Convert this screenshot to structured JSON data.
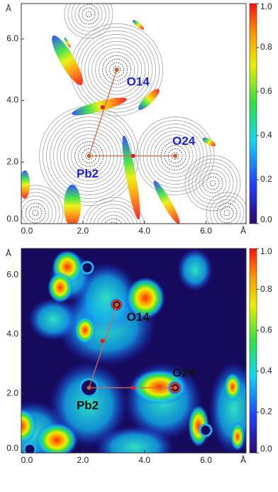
{
  "chart_data": [
    {
      "type": "contour",
      "x_label": "Å",
      "y_label": "Å",
      "xlim": [
        0,
        7.3
      ],
      "ylim": [
        0,
        7.15
      ],
      "xticks": [
        {
          "value": 0,
          "label": "0.0"
        },
        {
          "value": 2,
          "label": "2.0"
        },
        {
          "value": 4,
          "label": "4.0"
        },
        {
          "value": 6,
          "label": "6.0"
        }
      ],
      "yticks": [
        {
          "value": 0,
          "label": "0.0"
        },
        {
          "value": 2,
          "label": "2.0"
        },
        {
          "value": 4,
          "label": "4.0"
        },
        {
          "value": 6,
          "label": "6.0"
        }
      ],
      "colorbar": {
        "lim": [
          0,
          1
        ],
        "ticks": [
          {
            "value": 0,
            "label": "0.0"
          },
          {
            "value": 0.2,
            "label": "0.2"
          },
          {
            "value": 0.4,
            "label": "0.4"
          },
          {
            "value": 0.6,
            "label": "0.6"
          },
          {
            "value": 0.8,
            "label": "0.8"
          },
          {
            "value": 1,
            "label": "1.0"
          }
        ]
      },
      "atoms": [
        {
          "label": "O14",
          "x": 3.1,
          "y": 5.0
        },
        {
          "label": "O24",
          "x": 5.0,
          "y": 2.2
        },
        {
          "label": "Pb2",
          "x": 2.2,
          "y": 2.2
        }
      ],
      "label_color": "#2323c8",
      "critical_points": {
        "x": [
          2.64,
          3.63
        ],
        "y": [
          3.78,
          2.2
        ]
      }
    },
    {
      "type": "heatmap",
      "x_label": "Å",
      "y_label": "Å",
      "xlim": [
        0,
        7.3
      ],
      "ylim": [
        0,
        6.9
      ],
      "xticks": [
        {
          "value": 0,
          "label": "0.0"
        },
        {
          "value": 2,
          "label": "2.0"
        },
        {
          "value": 4,
          "label": "4.0"
        },
        {
          "value": 6,
          "label": "6.0"
        }
      ],
      "yticks": [
        {
          "value": 0,
          "label": "0.0"
        },
        {
          "value": 2,
          "label": "2.0"
        },
        {
          "value": 4,
          "label": "4.0"
        },
        {
          "value": 6,
          "label": "6.0"
        }
      ],
      "colorbar": {
        "lim": [
          0,
          1
        ],
        "ticks": [
          {
            "value": 0,
            "label": "0.0"
          },
          {
            "value": 0.2,
            "label": "0.2"
          },
          {
            "value": 0.4,
            "label": "0.4"
          },
          {
            "value": 0.6,
            "label": "0.6"
          },
          {
            "value": 0.8,
            "label": "0.8"
          },
          {
            "value": 1,
            "label": "1.0"
          }
        ]
      },
      "atoms": [
        {
          "label": "O14",
          "x": 3.1,
          "y": 5.0
        },
        {
          "label": "O24",
          "x": 5.0,
          "y": 2.2
        },
        {
          "label": "Pb2",
          "x": 2.2,
          "y": 2.2
        }
      ],
      "label_color": "#111111",
      "critical_points": {
        "x": [
          2.64,
          3.63
        ],
        "y": [
          3.78,
          2.2
        ]
      }
    }
  ]
}
